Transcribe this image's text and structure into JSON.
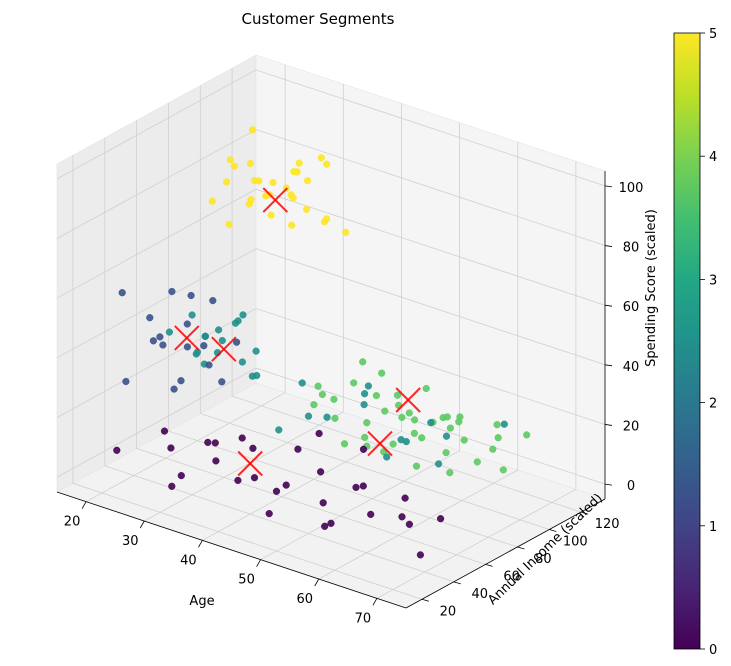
{
  "chart_data": {
    "type": "scatter",
    "projection": "3d",
    "title": "Customer Segments",
    "xlabel": "Age",
    "ylabel": "Annual Income (scaled)",
    "zlabel": "Spending Score (scaled)",
    "xlim": [
      15,
      75
    ],
    "ylim": [
      10,
      135
    ],
    "zlim": [
      -5,
      105
    ],
    "xticks": [
      20,
      30,
      40,
      50,
      60,
      70
    ],
    "yticks": [
      20,
      40,
      60,
      80,
      100,
      120
    ],
    "zticks": [
      0,
      20,
      40,
      60,
      80,
      100
    ],
    "grid": true,
    "colormap": "viridis",
    "colorbar": {
      "label": "",
      "range": [
        0,
        5
      ],
      "ticks": [
        0,
        1,
        2,
        3,
        4,
        5
      ]
    },
    "colors": {
      "c0": "#440154",
      "c1": "#3b528b",
      "c2": "#21908d",
      "c3": "#5dc963",
      "c4": "#5dc963",
      "c5": "#fde725",
      "centroid": "#ff0000"
    },
    "clusters": [
      {
        "label": 0,
        "color": "#440154",
        "centroid": [
          40,
          40,
          12
        ],
        "points": [
          [
            22,
            22,
            10
          ],
          [
            25,
            45,
            6
          ],
          [
            28,
            30,
            18
          ],
          [
            30,
            55,
            2
          ],
          [
            32,
            20,
            5
          ],
          [
            34,
            40,
            15
          ],
          [
            35,
            60,
            8
          ],
          [
            36,
            28,
            20
          ],
          [
            38,
            50,
            3
          ],
          [
            40,
            35,
            22
          ],
          [
            42,
            25,
            12
          ],
          [
            44,
            48,
            5
          ],
          [
            45,
            65,
            18
          ],
          [
            46,
            30,
            2
          ],
          [
            48,
            55,
            10
          ],
          [
            50,
            20,
            15
          ],
          [
            52,
            42,
            6
          ],
          [
            54,
            60,
            20
          ],
          [
            55,
            32,
            3
          ],
          [
            56,
            48,
            12
          ],
          [
            58,
            25,
            8
          ],
          [
            60,
            38,
            18
          ],
          [
            62,
            55,
            4
          ],
          [
            64,
            28,
            14
          ],
          [
            66,
            45,
            7
          ],
          [
            68,
            35,
            20
          ],
          [
            70,
            50,
            10
          ],
          [
            72,
            30,
            5
          ],
          [
            40,
            70,
            8
          ],
          [
            35,
            15,
            12
          ]
        ]
      },
      {
        "label": 1,
        "color": "#3b528b",
        "centroid": [
          25,
          55,
          40
        ],
        "points": [
          [
            18,
            40,
            55
          ],
          [
            19,
            60,
            35
          ],
          [
            20,
            50,
            45
          ],
          [
            21,
            70,
            30
          ],
          [
            22,
            45,
            40
          ],
          [
            23,
            65,
            50
          ],
          [
            24,
            55,
            25
          ],
          [
            25,
            40,
            42
          ],
          [
            26,
            62,
            36
          ],
          [
            27,
            48,
            48
          ],
          [
            28,
            58,
            32
          ],
          [
            29,
            52,
            44
          ],
          [
            30,
            68,
            38
          ],
          [
            20,
            35,
            28
          ],
          [
            24,
            75,
            46
          ],
          [
            22,
            58,
            20
          ],
          [
            26,
            42,
            60
          ],
          [
            28,
            66,
            24
          ]
        ]
      },
      {
        "label": 2,
        "color": "#21908d",
        "centroid": [
          30,
          60,
          38
        ],
        "points": [
          [
            22,
            55,
            40
          ],
          [
            24,
            62,
            45
          ],
          [
            26,
            58,
            35
          ],
          [
            28,
            64,
            42
          ],
          [
            30,
            56,
            38
          ],
          [
            32,
            60,
            48
          ],
          [
            34,
            66,
            30
          ],
          [
            27,
            70,
            36
          ],
          [
            29,
            52,
            44
          ],
          [
            31,
            68,
            32
          ],
          [
            33,
            58,
            50
          ],
          [
            35,
            62,
            40
          ],
          [
            25,
            66,
            28
          ],
          [
            28,
            50,
            38
          ],
          [
            36,
            56,
            34
          ],
          [
            30,
            72,
            46
          ],
          [
            45,
            70,
            22
          ],
          [
            50,
            75,
            28
          ],
          [
            55,
            80,
            18
          ],
          [
            60,
            65,
            25
          ],
          [
            48,
            85,
            30
          ],
          [
            58,
            60,
            20
          ],
          [
            52,
            68,
            35
          ],
          [
            62,
            78,
            15
          ],
          [
            44,
            62,
            24
          ],
          [
            65,
            72,
            28
          ],
          [
            40,
            58,
            18
          ],
          [
            70,
            90,
            30
          ],
          [
            38,
            80,
            26
          ],
          [
            56,
            95,
            20
          ]
        ]
      },
      {
        "label": 3,
        "color": "#5dc963",
        "centroid": [
          50,
          85,
          12
        ],
        "points": [
          [
            40,
            80,
            20
          ],
          [
            42,
            86,
            15
          ],
          [
            44,
            78,
            25
          ],
          [
            46,
            90,
            10
          ],
          [
            48,
            84,
            18
          ],
          [
            50,
            88,
            22
          ],
          [
            52,
            80,
            12
          ],
          [
            54,
            92,
            16
          ],
          [
            56,
            86,
            8
          ],
          [
            58,
            82,
            20
          ],
          [
            60,
            90,
            14
          ],
          [
            45,
            95,
            5
          ],
          [
            55,
            75,
            18
          ],
          [
            62,
            85,
            10
          ],
          [
            38,
            90,
            22
          ],
          [
            64,
            95,
            12
          ],
          [
            48,
            70,
            15
          ],
          [
            58,
            100,
            18
          ]
        ]
      },
      {
        "label": 4,
        "color": "#5dc963",
        "centroid": [
          48,
          110,
          18
        ],
        "points": [
          [
            40,
            105,
            20
          ],
          [
            42,
            112,
            15
          ],
          [
            44,
            108,
            25
          ],
          [
            46,
            118,
            10
          ],
          [
            48,
            104,
            18
          ],
          [
            50,
            114,
            22
          ],
          [
            52,
            120,
            12
          ],
          [
            54,
            110,
            16
          ],
          [
            56,
            116,
            8
          ],
          [
            58,
            106,
            20
          ],
          [
            60,
            122,
            14
          ],
          [
            45,
            125,
            5
          ],
          [
            55,
            100,
            18
          ],
          [
            62,
            112,
            10
          ],
          [
            38,
            118,
            22
          ],
          [
            64,
            126,
            12
          ],
          [
            36,
            100,
            15
          ],
          [
            66,
            104,
            8
          ],
          [
            42,
            128,
            3
          ],
          [
            50,
            96,
            25
          ],
          [
            58,
            130,
            6
          ],
          [
            60,
            98,
            22
          ]
        ]
      },
      {
        "label": 5,
        "color": "#fde725",
        "centroid": [
          32,
          85,
          82
        ],
        "points": [
          [
            25,
            80,
            85
          ],
          [
            27,
            88,
            78
          ],
          [
            28,
            84,
            92
          ],
          [
            29,
            90,
            80
          ],
          [
            30,
            82,
            88
          ],
          [
            31,
            86,
            76
          ],
          [
            32,
            92,
            84
          ],
          [
            33,
            80,
            90
          ],
          [
            34,
            88,
            74
          ],
          [
            35,
            84,
            86
          ],
          [
            36,
            90,
            80
          ],
          [
            26,
            94,
            82
          ],
          [
            37,
            78,
            88
          ],
          [
            24,
            86,
            90
          ],
          [
            38,
            94,
            76
          ],
          [
            30,
            76,
            82
          ],
          [
            34,
            98,
            86
          ],
          [
            28,
            96,
            78
          ],
          [
            40,
            88,
            80
          ],
          [
            22,
            82,
            76
          ],
          [
            32,
            100,
            90
          ],
          [
            36,
            82,
            95
          ],
          [
            26,
            78,
            72
          ],
          [
            38,
            92,
            98
          ],
          [
            30,
            106,
            84
          ],
          [
            28,
            74,
            94
          ],
          [
            40,
            100,
            72
          ],
          [
            34,
            110,
            88
          ],
          [
            24,
            100,
            96
          ]
        ]
      }
    ]
  }
}
